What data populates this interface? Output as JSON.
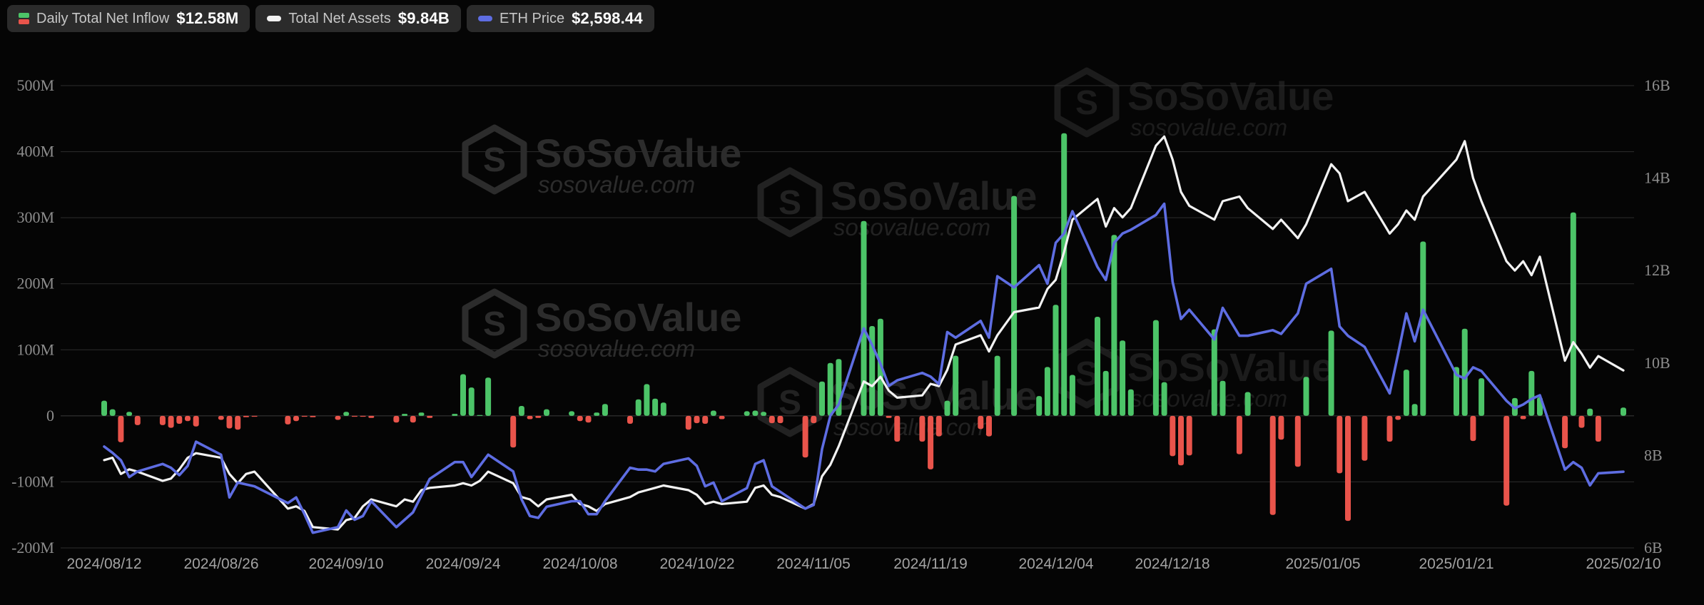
{
  "legend": {
    "items": [
      {
        "id": "daily-net-inflow",
        "label": "Daily Total Net Inflow",
        "value": "$12.58M",
        "icon": "split-square-icon",
        "color_positive": "#4cc468",
        "color_negative": "#e9544b"
      },
      {
        "id": "total-net-assets",
        "label": "Total Net Assets",
        "value": "$9.84B",
        "icon": "dash-icon",
        "color": "#f2f2f2"
      },
      {
        "id": "eth-price",
        "label": "ETH Price",
        "value": "$2,598.44",
        "icon": "dash-icon",
        "color": "#5e6de2"
      }
    ]
  },
  "watermark": {
    "brand": "SoSoValue",
    "domain": "sosovalue.com"
  },
  "colors": {
    "background": "#050505",
    "grid": "#2d2d2d",
    "zero_line": "#3a3a3a",
    "bar_positive": "#4cc468",
    "bar_negative": "#e9544b",
    "assets_line": "#f2f2f2",
    "price_line": "#5e6de2",
    "axis_text": "#8d8d8d",
    "date_text": "#a2a2a2",
    "watermark": "#2c2c2c",
    "legend_pill_bg": "#2b2b2b"
  },
  "y_axis_left": {
    "unit": "USD millions (Daily Total Net Inflow)",
    "ticks": [
      {
        "label": "500M",
        "value": 500
      },
      {
        "label": "400M",
        "value": 400
      },
      {
        "label": "300M",
        "value": 300
      },
      {
        "label": "200M",
        "value": 200
      },
      {
        "label": "100M",
        "value": 100
      },
      {
        "label": "0",
        "value": 0
      },
      {
        "label": "-100M",
        "value": -100
      },
      {
        "label": "-200M",
        "value": -200
      }
    ]
  },
  "y_axis_right": {
    "unit": "USD billions (Total Net Assets)",
    "ticks": [
      {
        "label": "16B",
        "value": 16
      },
      {
        "label": "14B",
        "value": 14
      },
      {
        "label": "12B",
        "value": 12
      },
      {
        "label": "10B",
        "value": 10
      },
      {
        "label": "8B",
        "value": 8
      },
      {
        "label": "6B",
        "value": 6
      }
    ]
  },
  "x_axis": {
    "labels": [
      "2024/08/12",
      "2024/08/26",
      "2024/09/10",
      "2024/09/24",
      "2024/10/08",
      "2024/10/22",
      "2024/11/05",
      "2024/11/19",
      "2024/12/04",
      "2024/12/18",
      "2025/01/05",
      "2025/01/21",
      "2025/02/10"
    ]
  },
  "chart_data": {
    "type": "combo",
    "title": "ETH spot ETF: daily total net inflow (bars), total net assets (white line), ETH price (blue line)",
    "legend_position": "top-left",
    "grid": "horizontal",
    "series": [
      {
        "name": "Daily Total Net Inflow",
        "type": "bar",
        "axis": "left",
        "unit": "USD millions",
        "current": "$12.58M"
      },
      {
        "name": "Total Net Assets",
        "type": "line",
        "axis": "right",
        "unit": "USD billions",
        "current": "$9.84B"
      },
      {
        "name": "ETH Price",
        "type": "line",
        "axis": "hidden",
        "unit": "USD",
        "current": "$2,598.44"
      }
    ],
    "left_axis_range": [
      -200,
      500
    ],
    "right_axis_range": [
      6,
      16
    ],
    "eth_axis_range": [
      2150,
      4100
    ],
    "dates": [
      "2024/08/12",
      "2024/08/13",
      "2024/08/14",
      "2024/08/15",
      "2024/08/16",
      "2024/08/19",
      "2024/08/20",
      "2024/08/21",
      "2024/08/22",
      "2024/08/23",
      "2024/08/26",
      "2024/08/27",
      "2024/08/28",
      "2024/08/29",
      "2024/08/30",
      "2024/09/03",
      "2024/09/04",
      "2024/09/05",
      "2024/09/06",
      "2024/09/09",
      "2024/09/10",
      "2024/09/11",
      "2024/09/12",
      "2024/09/13",
      "2024/09/16",
      "2024/09/17",
      "2024/09/18",
      "2024/09/19",
      "2024/09/20",
      "2024/09/23",
      "2024/09/24",
      "2024/09/25",
      "2024/09/26",
      "2024/09/27",
      "2024/09/30",
      "2024/10/01",
      "2024/10/02",
      "2024/10/03",
      "2024/10/04",
      "2024/10/07",
      "2024/10/08",
      "2024/10/09",
      "2024/10/10",
      "2024/10/11",
      "2024/10/14",
      "2024/10/15",
      "2024/10/16",
      "2024/10/17",
      "2024/10/18",
      "2024/10/21",
      "2024/10/22",
      "2024/10/23",
      "2024/10/24",
      "2024/10/25",
      "2024/10/28",
      "2024/10/29",
      "2024/10/30",
      "2024/10/31",
      "2024/11/01",
      "2024/11/04",
      "2024/11/05",
      "2024/11/06",
      "2024/11/07",
      "2024/11/08",
      "2024/11/11",
      "2024/11/12",
      "2024/11/13",
      "2024/11/14",
      "2024/11/15",
      "2024/11/18",
      "2024/11/19",
      "2024/11/20",
      "2024/11/21",
      "2024/11/22",
      "2024/11/25",
      "2024/11/26",
      "2024/11/27",
      "2024/11/29",
      "2024/12/02",
      "2024/12/03",
      "2024/12/04",
      "2024/12/05",
      "2024/12/06",
      "2024/12/09",
      "2024/12/10",
      "2024/12/11",
      "2024/12/12",
      "2024/12/13",
      "2024/12/16",
      "2024/12/17",
      "2024/12/18",
      "2024/12/19",
      "2024/12/20",
      "2024/12/23",
      "2024/12/24",
      "2024/12/26",
      "2024/12/27",
      "2024/12/30",
      "2024/12/31",
      "2025/01/02",
      "2025/01/03",
      "2025/01/06",
      "2025/01/07",
      "2025/01/08",
      "2025/01/10",
      "2025/01/13",
      "2025/01/14",
      "2025/01/15",
      "2025/01/16",
      "2025/01/17",
      "2025/01/21",
      "2025/01/22",
      "2025/01/23",
      "2025/01/24",
      "2025/01/27",
      "2025/01/28",
      "2025/01/29",
      "2025/01/30",
      "2025/01/31",
      "2025/02/03",
      "2025/02/04",
      "2025/02/05",
      "2025/02/06",
      "2025/02/07",
      "2025/02/10"
    ],
    "inflow_m": [
      23,
      10,
      -40,
      6,
      -14,
      -14,
      -18,
      -12,
      -8,
      -16,
      -6,
      -19,
      -21,
      -2,
      -1,
      -13,
      -8,
      -1,
      -2,
      -6,
      6,
      -1,
      -1,
      -3,
      -10,
      3,
      -10,
      5,
      -3,
      3,
      63,
      43,
      1,
      58,
      -48,
      15,
      -5,
      -3,
      10,
      7,
      -8,
      -10,
      5,
      18,
      -12,
      25,
      48,
      26,
      20,
      -21,
      -11,
      -12,
      8,
      -5,
      7,
      8,
      6,
      -11,
      -11,
      -63,
      -11,
      52,
      80,
      86,
      295,
      136,
      147,
      -3,
      -39,
      -39,
      -81,
      -31,
      23,
      91,
      -20,
      -31,
      91,
      333,
      30,
      74,
      168,
      428,
      62,
      150,
      68,
      274,
      114,
      40,
      145,
      51,
      -61,
      -75,
      -60,
      131,
      53,
      -58,
      36,
      -150,
      -36,
      -77,
      59,
      129,
      -87,
      -159,
      -68,
      -39,
      -6,
      70,
      18,
      264,
      74,
      132,
      -38,
      57,
      -136,
      27,
      -5,
      68,
      28,
      -49,
      308,
      -18,
      11,
      -39,
      12.58
    ],
    "assets_b": [
      7.9,
      7.95,
      7.6,
      7.7,
      7.65,
      7.45,
      7.5,
      7.7,
      7.95,
      8.05,
      7.95,
      7.6,
      7.4,
      7.6,
      7.65,
      6.85,
      6.9,
      6.8,
      6.45,
      6.4,
      6.6,
      6.65,
      6.9,
      7.05,
      6.9,
      7.05,
      7.0,
      7.25,
      7.3,
      7.35,
      7.4,
      7.35,
      7.45,
      7.65,
      7.4,
      7.1,
      7.05,
      6.9,
      7.05,
      7.15,
      6.95,
      6.9,
      6.8,
      6.95,
      7.1,
      7.2,
      7.25,
      7.3,
      7.35,
      7.25,
      7.15,
      6.95,
      7.0,
      6.95,
      7.0,
      7.3,
      7.35,
      7.15,
      7.1,
      6.85,
      6.95,
      7.55,
      7.8,
      8.2,
      9.6,
      9.5,
      9.7,
      9.4,
      9.25,
      9.3,
      9.55,
      9.5,
      9.85,
      10.4,
      10.6,
      10.25,
      10.6,
      11.1,
      11.2,
      11.6,
      11.8,
      12.4,
      13.1,
      13.55,
      12.95,
      13.35,
      13.15,
      13.35,
      14.7,
      14.9,
      14.4,
      13.7,
      13.4,
      13.1,
      13.5,
      13.6,
      13.35,
      12.9,
      13.1,
      12.7,
      13.0,
      14.3,
      14.1,
      13.5,
      13.7,
      12.8,
      13.0,
      13.3,
      13.1,
      13.6,
      14.4,
      14.8,
      14.0,
      13.5,
      12.2,
      12.0,
      12.2,
      11.9,
      12.3,
      10.05,
      10.45,
      10.2,
      9.9,
      10.15,
      9.84
    ],
    "eth_price": [
      2734,
      2700,
      2660,
      2570,
      2600,
      2640,
      2620,
      2580,
      2630,
      2760,
      2690,
      2460,
      2540,
      2530,
      2520,
      2430,
      2460,
      2370,
      2270,
      2300,
      2390,
      2340,
      2360,
      2440,
      2300,
      2340,
      2380,
      2470,
      2560,
      2650,
      2650,
      2570,
      2630,
      2690,
      2600,
      2450,
      2360,
      2350,
      2410,
      2440,
      2440,
      2370,
      2370,
      2440,
      2620,
      2610,
      2610,
      2600,
      2640,
      2670,
      2630,
      2520,
      2540,
      2440,
      2510,
      2640,
      2660,
      2520,
      2490,
      2400,
      2420,
      2720,
      2900,
      2960,
      3370,
      3280,
      3180,
      3060,
      3090,
      3130,
      3110,
      3070,
      3350,
      3320,
      3410,
      3320,
      3650,
      3590,
      3710,
      3610,
      3830,
      3880,
      4000,
      3700,
      3630,
      3830,
      3880,
      3900,
      3980,
      4040,
      3620,
      3420,
      3470,
      3310,
      3480,
      3330,
      3330,
      3360,
      3340,
      3450,
      3610,
      3690,
      3380,
      3330,
      3270,
      3020,
      3230,
      3450,
      3300,
      3470,
      3120,
      3100,
      3160,
      3140,
      2980,
      2940,
      2960,
      2990,
      3010,
      2610,
      2650,
      2620,
      2525,
      2590,
      2598.44
    ]
  }
}
